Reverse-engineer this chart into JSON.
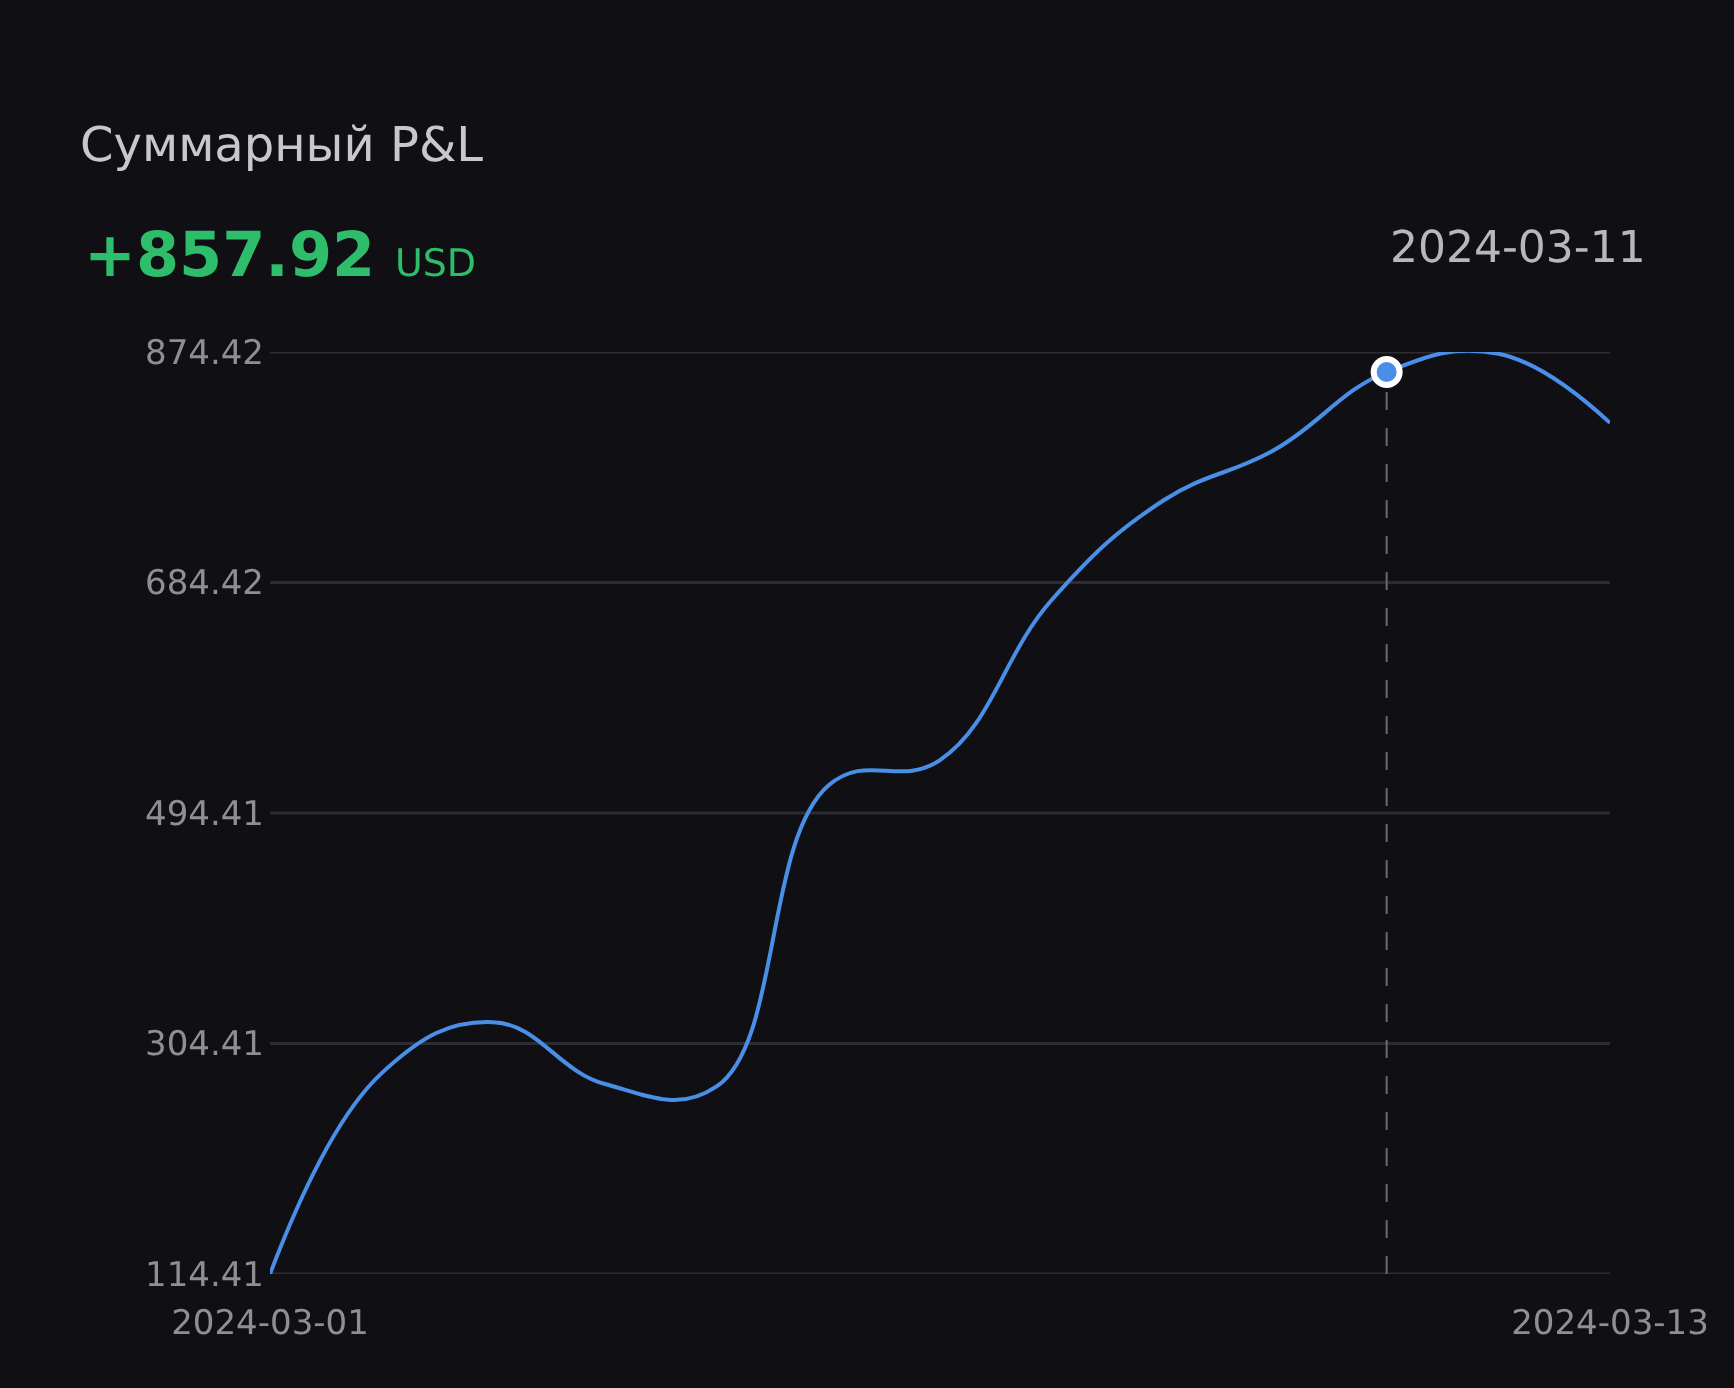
{
  "chart_data": {
    "type": "line",
    "title": "Суммарный P&L",
    "subtitle": "+857.92 USD",
    "x": [
      "2024-03-01",
      "2024-03-02",
      "2024-03-03",
      "2024-03-04",
      "2024-03-05",
      "2024-03-06",
      "2024-03-07",
      "2024-03-08",
      "2024-03-09",
      "2024-03-10",
      "2024-03-11",
      "2024-03-12",
      "2024-03-13"
    ],
    "series": [
      {
        "color": "#4a8fe7",
        "values": [
          114.41,
          280,
          322,
          271,
          269,
          517,
          538,
          670,
          752,
          794,
          857.92,
          873,
          816
        ]
      },
      {
        "type": "scatter",
        "color": "#4a8fe7",
        "marker": "circle",
        "x": [
          "2024-03-11"
        ],
        "values": [
          857.92
        ]
      }
    ],
    "xlim": [
      "2024-03-01",
      "2024-03-13"
    ],
    "xticks": [
      {
        "value": "2024-03-01",
        "label": "2024-03-01"
      },
      {
        "value": "2024-03-13",
        "label": "2024-03-13"
      }
    ],
    "ylim": [
      114.41,
      874.42
    ],
    "yticks": [
      114.41,
      304.41,
      494.41,
      684.42,
      874.42
    ],
    "ref_lines": [
      {
        "axis": "x",
        "value": "2024-03-11",
        "label": "2024-03-11",
        "color": "#6a6a70",
        "line_style": "dashed"
      }
    ],
    "grid": "y",
    "line_style": "solid"
  }
}
